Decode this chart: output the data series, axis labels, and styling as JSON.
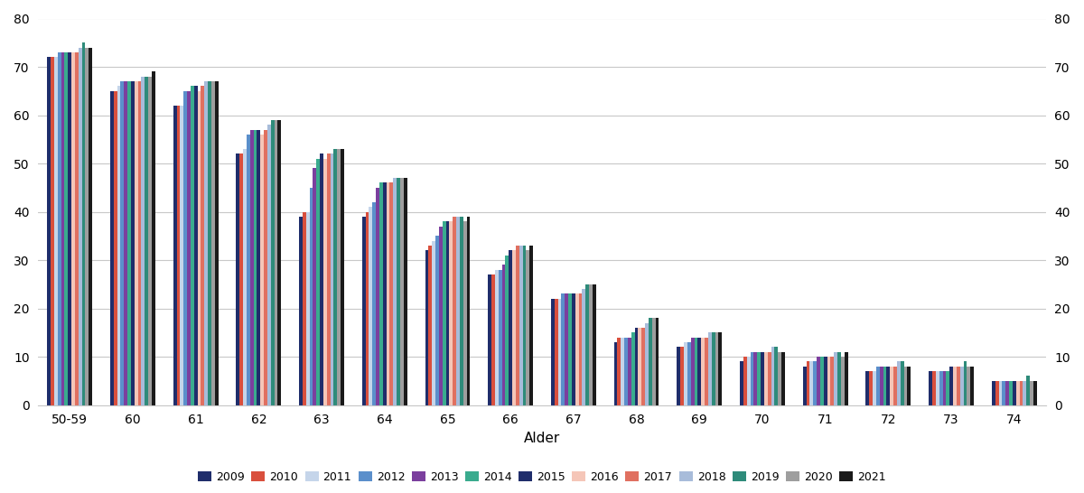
{
  "categories": [
    "50-59",
    "60",
    "61",
    "62",
    "63",
    "64",
    "65",
    "66",
    "67",
    "68",
    "69",
    "70",
    "71",
    "72",
    "73",
    "74"
  ],
  "years": [
    "2009",
    "2010",
    "2011",
    "2012",
    "2013",
    "2014",
    "2015",
    "2016",
    "2017",
    "2018",
    "2019",
    "2020",
    "2021"
  ],
  "series_colors": {
    "2009": "#1f2d6b",
    "2010": "#d94f3d",
    "2011": "#c5d5ea",
    "2012": "#5b8fcb",
    "2013": "#7b3f9e",
    "2014": "#3aab8e",
    "2015": "#1f2d6b",
    "2016": "#f5c6b8",
    "2017": "#e07060",
    "2018": "#a8bcda",
    "2019": "#2e8b7a",
    "2020": "#9e9e9e",
    "2021": "#1a1a1a"
  },
  "data": {
    "50-59": [
      72,
      72,
      72,
      73,
      73,
      73,
      73,
      73,
      73,
      74,
      75,
      74,
      74
    ],
    "60": [
      65,
      65,
      66,
      67,
      67,
      67,
      67,
      67,
      67,
      68,
      68,
      68,
      69
    ],
    "61": [
      62,
      62,
      62,
      65,
      65,
      66,
      66,
      65,
      66,
      67,
      67,
      67,
      67
    ],
    "62": [
      52,
      52,
      53,
      56,
      57,
      57,
      57,
      56,
      57,
      58,
      59,
      59,
      59
    ],
    "63": [
      39,
      40,
      40,
      45,
      49,
      51,
      52,
      51,
      52,
      52,
      53,
      53,
      53
    ],
    "64": [
      39,
      40,
      41,
      42,
      45,
      46,
      46,
      46,
      46,
      47,
      47,
      47,
      47
    ],
    "65": [
      32,
      33,
      34,
      35,
      37,
      38,
      38,
      38,
      39,
      39,
      39,
      38,
      39
    ],
    "66": [
      27,
      27,
      28,
      28,
      29,
      31,
      32,
      32,
      33,
      33,
      33,
      32,
      33
    ],
    "67": [
      22,
      22,
      22,
      23,
      23,
      23,
      23,
      23,
      23,
      24,
      25,
      25,
      25
    ],
    "68": [
      13,
      14,
      14,
      14,
      14,
      15,
      16,
      16,
      16,
      17,
      18,
      18,
      18
    ],
    "69": [
      12,
      12,
      13,
      13,
      14,
      14,
      14,
      14,
      14,
      15,
      15,
      15,
      15
    ],
    "70": [
      9,
      10,
      10,
      11,
      11,
      11,
      11,
      11,
      11,
      12,
      12,
      11,
      11
    ],
    "71": [
      8,
      9,
      9,
      9,
      10,
      10,
      10,
      10,
      10,
      11,
      11,
      10,
      11
    ],
    "72": [
      7,
      7,
      7,
      8,
      8,
      8,
      8,
      8,
      8,
      9,
      9,
      8,
      8
    ],
    "73": [
      7,
      7,
      7,
      7,
      7,
      7,
      8,
      8,
      8,
      8,
      9,
      8,
      8
    ],
    "74": [
      5,
      5,
      5,
      5,
      5,
      5,
      5,
      5,
      5,
      5,
      6,
      5,
      5
    ]
  },
  "xlabel": "Alder",
  "ylim": [
    0,
    80
  ],
  "yticks": [
    0,
    10,
    20,
    30,
    40,
    50,
    60,
    70,
    80
  ],
  "grid_color": "#c8c8c8"
}
